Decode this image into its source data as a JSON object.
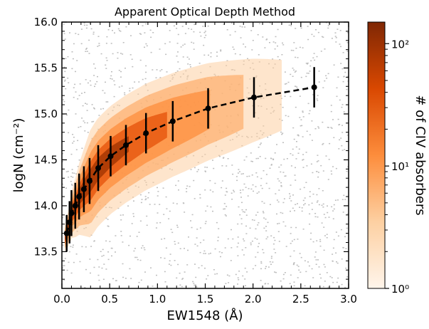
{
  "chart_data": {
    "type": "scatter",
    "title": "Apparent Optical Depth Method",
    "xlabel": "EW1548 (Å)",
    "ylabel": "logN (cm⁻²)",
    "xlim": [
      0.0,
      3.0
    ],
    "ylim": [
      13.1,
      16.0
    ],
    "x_ticks": [
      "0.0",
      "0.5",
      "1.0",
      "1.5",
      "2.0",
      "2.5",
      "3.0"
    ],
    "y_ticks": [
      "13.5",
      "14.0",
      "14.5",
      "15.0",
      "15.5",
      "16.0"
    ],
    "grid": false,
    "colorbar": {
      "label": "# of CIV absorbers",
      "scale": "log",
      "range": [
        1,
        150
      ],
      "ticks": [
        "10⁰",
        "10¹",
        "10²"
      ],
      "colors": [
        "#fff5eb",
        "#fdd0a2",
        "#fd8d3c",
        "#d94801",
        "#7f2704"
      ]
    },
    "background_density": {
      "description_colors": [
        "#fff5eb",
        "#fdae6b",
        "#e6550d",
        "#7f2704"
      ]
    },
    "series": [
      {
        "x": [
          0.05,
          0.08,
          0.1,
          0.14,
          0.18,
          0.23,
          0.29,
          0.38,
          0.51,
          0.67,
          0.88,
          1.16,
          1.53,
          2.01,
          2.64
        ],
        "y": [
          13.7,
          13.82,
          13.92,
          14.0,
          14.1,
          14.18,
          14.27,
          14.41,
          14.54,
          14.66,
          14.79,
          14.92,
          15.06,
          15.18,
          15.29
        ],
        "yerr": [
          0.2,
          0.23,
          0.25,
          0.25,
          0.25,
          0.25,
          0.25,
          0.25,
          0.22,
          0.22,
          0.22,
          0.22,
          0.22,
          0.22,
          0.22
        ]
      }
    ]
  }
}
